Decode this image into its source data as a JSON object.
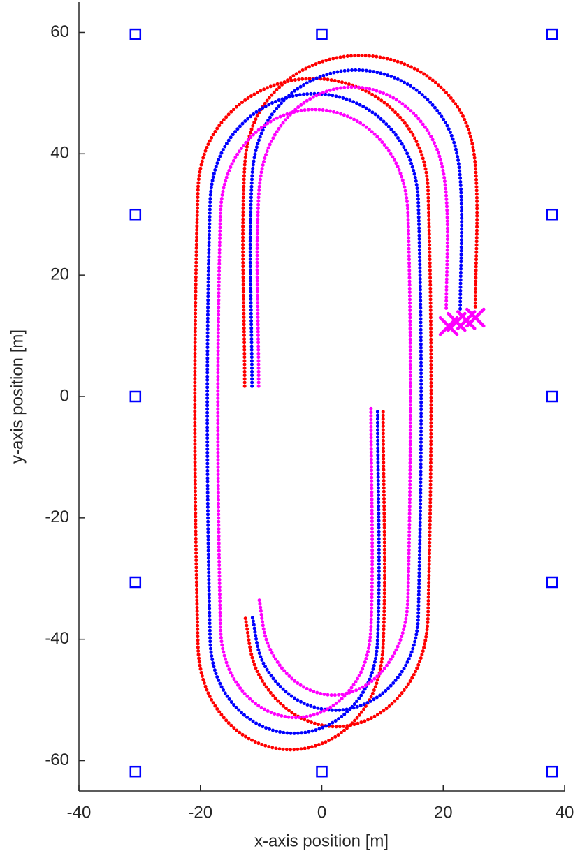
{
  "chart_data": {
    "type": "line",
    "xlabel": "x-axis position [m]",
    "ylabel": "y-axis position [m]",
    "xlim": [
      -40,
      40
    ],
    "ylim": [
      -65,
      65
    ],
    "xticks": [
      -40,
      -20,
      0,
      20,
      40
    ],
    "yticks": [
      -60,
      -40,
      -20,
      0,
      20,
      40,
      60
    ],
    "grid": false,
    "series": [
      {
        "color": "#ff0000",
        "style": "dots",
        "x": [
          10.1,
          10.1,
          8.06,
          2.48,
          -5.15,
          -12.78,
          -18.36,
          -20.4,
          -20.4,
          -17.86,
          -10.93,
          -1.45,
          8.03,
          14.96,
          17.5,
          17.5,
          15.48,
          9.95,
          2.4,
          -5.15,
          -10.68,
          -12.7,
          null,
          -12.7,
          -12.7,
          -10.15,
          -3.2,
          6.3,
          15.8,
          22.75,
          25.3,
          25.3
        ],
        "y": [
          -2.5,
          -41,
          -49.6,
          -55.9,
          -58.2,
          -55.9,
          -49.6,
          -41,
          34,
          43.2,
          49.93,
          52.4,
          49.93,
          43.2,
          34,
          -36,
          -45.2,
          -51.93,
          -54.4,
          -51.93,
          -45.2,
          -36,
          null,
          1.7,
          38,
          47.1,
          53.76,
          56.2,
          53.76,
          47.1,
          38,
          14.5
        ]
      },
      {
        "color": "#0000ff",
        "style": "dots",
        "x": [
          9.2,
          9.2,
          7.35,
          2.3,
          -4.6,
          -11.5,
          -16.55,
          -18.4,
          -18.4,
          -16.1,
          -9.83,
          -1.25,
          7.33,
          13.6,
          15.9,
          15.9,
          14.06,
          9.05,
          2.2,
          -4.65,
          -9.66,
          -11.5,
          null,
          -11.5,
          -11.5,
          -9.2,
          -2.93,
          5.65,
          14.23,
          20.5,
          22.8,
          22.8
        ],
        "y": [
          -2.5,
          -40,
          -47.75,
          -53.42,
          -55.5,
          -53.42,
          -47.75,
          -40,
          32,
          40.95,
          47.5,
          49.9,
          47.5,
          40.95,
          32,
          -36,
          -43.85,
          -49.6,
          -51.7,
          -49.6,
          -43.85,
          -36,
          null,
          1.7,
          36,
          44.9,
          51.4,
          53.8,
          51.4,
          44.9,
          36,
          14
        ]
      },
      {
        "color": "#ff00ff",
        "style": "dots",
        "x": [
          8.1,
          8.1,
          6.44,
          1.9,
          -4.3,
          -10.5,
          -15.04,
          -16.7,
          -16.7,
          -14.63,
          -8.98,
          -1.25,
          6.48,
          12.13,
          14.2,
          14.2,
          12.55,
          8.05,
          1.9,
          -4.25,
          -8.75,
          -10.4,
          null,
          -10.4,
          -10.4,
          -8.33,
          -2.68,
          5.05,
          12.78,
          18.43,
          20.5,
          20.5
        ],
        "y": [
          -2,
          -38,
          -45.45,
          -50.9,
          -52.9,
          -50.9,
          -45.45,
          -38,
          30,
          38.65,
          44.98,
          47.3,
          44.98,
          38.65,
          30,
          -33,
          -41.1,
          -47.03,
          -49.2,
          -47.03,
          -41.1,
          -33,
          null,
          1.7,
          33,
          42,
          48.59,
          51,
          48.59,
          42,
          33,
          14
        ]
      },
      {
        "color": "#0000ff",
        "marker": "square",
        "x": [
          -30.7,
          0,
          37.9,
          -30.7,
          37.9,
          -30.7,
          37.9,
          -30.7,
          37.9,
          -30.7,
          0,
          37.9
        ],
        "y": [
          59.7,
          59.7,
          59.7,
          30,
          30,
          0,
          0,
          -30.6,
          -30.6,
          -61.8,
          -61.8,
          -61.8
        ]
      },
      {
        "color": "#ff00ff",
        "marker": "x",
        "x": [
          20.9,
          22.2,
          23.8,
          25.3
        ],
        "y": [
          11.6,
          12.3,
          12.6,
          13.0
        ]
      }
    ]
  }
}
